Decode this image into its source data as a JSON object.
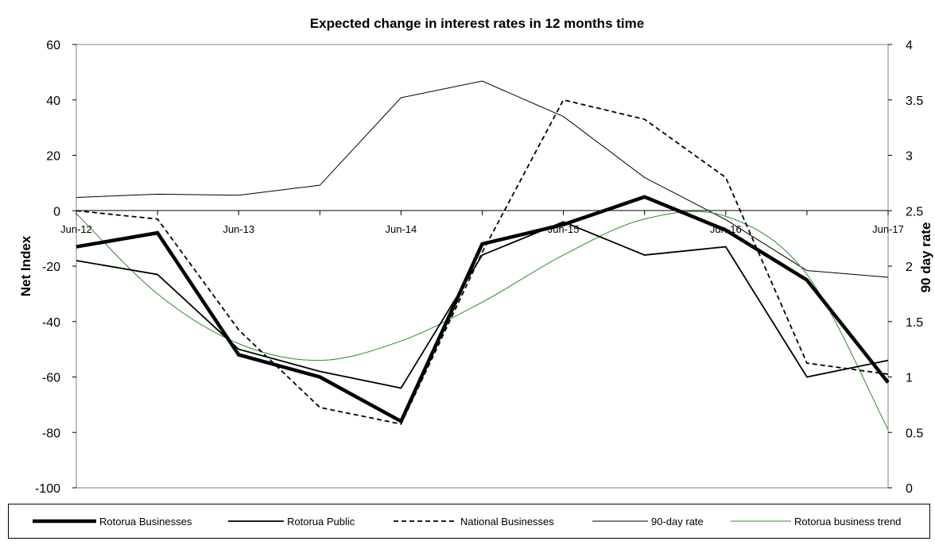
{
  "chart_data": {
    "type": "line",
    "title": "Expected change in interest rates in 12 months time",
    "ylabel": "Net Index",
    "y2label": "90 day rate",
    "ylim": [
      -100,
      60
    ],
    "y2lim": [
      0,
      4
    ],
    "yticks": [
      "60",
      "40",
      "20",
      "0",
      "-20",
      "-40",
      "-60",
      "-80",
      "-100"
    ],
    "y2ticks": [
      "4",
      "3.5",
      "3",
      "2.5",
      "2",
      "1.5",
      "1",
      "0.5",
      "0"
    ],
    "x_labels": [
      "Jun-12",
      "Jun-13",
      "Jun-14",
      "Jun-15",
      "Jun-16",
      "Jun-17"
    ],
    "x": [
      "Jun-12",
      "Dec-12",
      "Jun-13",
      "Dec-13",
      "Jun-14",
      "Dec-14",
      "Jun-15",
      "Dec-15",
      "Jun-16",
      "Dec-16",
      "Jun-17"
    ],
    "grid": false,
    "legend_position": "bottom",
    "series": [
      {
        "name": "Rotorua Businesses",
        "axis": "left",
        "style": "thick",
        "color": "#000000",
        "values": [
          -13,
          -8,
          -52,
          -60,
          -76,
          -12,
          -5,
          5,
          -7,
          -25,
          -62
        ]
      },
      {
        "name": "Rotorua Public",
        "axis": "left",
        "style": "solid",
        "color": "#000000",
        "values": [
          -18,
          -23,
          -50,
          -58,
          -64,
          -16,
          -4,
          -16,
          -13,
          -60,
          -54
        ]
      },
      {
        "name": "National Businesses",
        "axis": "left",
        "style": "dashed",
        "color": "#000000",
        "values": [
          0,
          -3,
          -43,
          -71,
          -77,
          -15,
          40,
          33,
          12,
          -55,
          -59
        ]
      },
      {
        "name": "90-day rate",
        "axis": "right",
        "style": "thin",
        "color": "#000000",
        "values": [
          2.62,
          2.65,
          2.64,
          2.73,
          3.52,
          3.67,
          3.35,
          2.8,
          2.42,
          1.96,
          1.9
        ]
      },
      {
        "name": "Rotorua business trend",
        "axis": "left",
        "style": "thin",
        "color": "#2e8b2e",
        "values": [
          -1,
          -30,
          -48,
          -54,
          -47,
          -33,
          -16,
          -3,
          -2,
          -23,
          -79
        ]
      }
    ]
  }
}
